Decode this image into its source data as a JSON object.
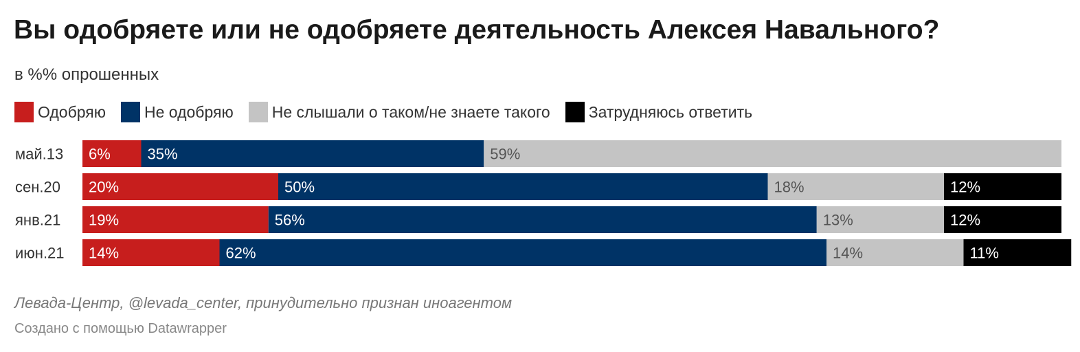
{
  "title": "Вы одобряете или не одобряете деятельность Алексея Навального?",
  "subtitle": "в %% опрошенных",
  "legend": [
    {
      "label": "Одобряю",
      "color": "#c71e1d"
    },
    {
      "label": "Не одобряю",
      "color": "#003366"
    },
    {
      "label": "Не слышали о таком/не знаете такого",
      "color": "#c4c4c4"
    },
    {
      "label": "Затрудняюсь ответить",
      "color": "#000000"
    }
  ],
  "source": "Левада-Центр, @levada_center, принудительно признан иноагентом",
  "credit": "Создано с помощью Datawrapper",
  "chart_data": {
    "type": "bar",
    "orientation": "horizontal",
    "stacked": true,
    "categories": [
      "май.13",
      "сен.20",
      "янв.21",
      "июн.21"
    ],
    "series": [
      {
        "name": "Одобряю",
        "color": "#c71e1d",
        "values": [
          6,
          20,
          19,
          14
        ],
        "labels": [
          "6%",
          "20%",
          "19%",
          "14%"
        ]
      },
      {
        "name": "Не одобряю",
        "color": "#003366",
        "values": [
          35,
          50,
          56,
          62
        ],
        "labels": [
          "35%",
          "50%",
          "56%",
          "62%"
        ]
      },
      {
        "name": "Не слышали о таком/не знаете такого",
        "color": "#c4c4c4",
        "values": [
          59,
          18,
          13,
          14
        ],
        "labels": [
          "59%",
          "18%",
          "13%",
          "14%"
        ]
      },
      {
        "name": "Затрудняюсь ответить",
        "color": "#000000",
        "values": [
          0,
          12,
          12,
          11
        ],
        "labels": [
          "",
          "12%",
          "12%",
          "11%"
        ]
      }
    ],
    "xlim": [
      0,
      100
    ]
  }
}
